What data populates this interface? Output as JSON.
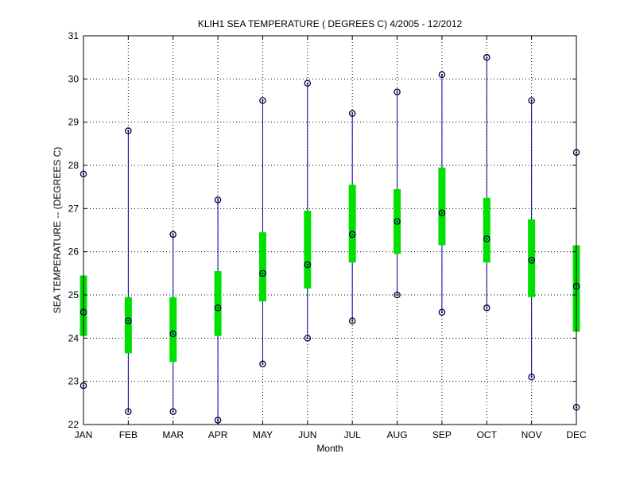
{
  "chart_data": {
    "type": "box",
    "title": "KLIH1  SEA TEMPERATURE ( DEGREES C) 4/2005 - 12/2012",
    "xlabel": "Month",
    "ylabel": "SEA TEMPERATURE -- (DEGREES C)",
    "ylim": [
      22,
      31
    ],
    "yticks": [
      "22",
      "23",
      "24",
      "25",
      "26",
      "27",
      "28",
      "29",
      "30",
      "31"
    ],
    "grid": true,
    "categories": [
      "JAN",
      "FEB",
      "MAR",
      "APR",
      "MAY",
      "JUN",
      "JUL",
      "AUG",
      "SEP",
      "OCT",
      "NOV",
      "DEC"
    ],
    "series": [
      {
        "stat": "min",
        "values": [
          22.9,
          22.3,
          22.3,
          22.1,
          23.4,
          24.0,
          24.4,
          25.0,
          24.6,
          24.7,
          23.1,
          22.4
        ]
      },
      {
        "stat": "q1",
        "values": [
          24.05,
          23.65,
          23.45,
          24.05,
          24.85,
          25.15,
          25.75,
          25.95,
          26.15,
          25.75,
          24.95,
          24.15
        ]
      },
      {
        "stat": "median",
        "values": [
          24.6,
          24.4,
          24.1,
          24.7,
          25.5,
          25.7,
          26.4,
          26.7,
          26.9,
          26.3,
          25.8,
          25.2
        ]
      },
      {
        "stat": "q3",
        "values": [
          25.45,
          24.95,
          24.95,
          25.55,
          26.45,
          26.95,
          27.55,
          27.45,
          27.95,
          27.25,
          26.75,
          26.15
        ]
      },
      {
        "stat": "max",
        "values": [
          27.8,
          28.8,
          26.4,
          27.2,
          29.5,
          29.9,
          29.2,
          29.7,
          30.1,
          30.5,
          29.5,
          28.3
        ]
      }
    ],
    "colors": {
      "whisker": "#0000a0",
      "box": "#00e000",
      "marker": "#000040",
      "grid": "#000000"
    }
  }
}
